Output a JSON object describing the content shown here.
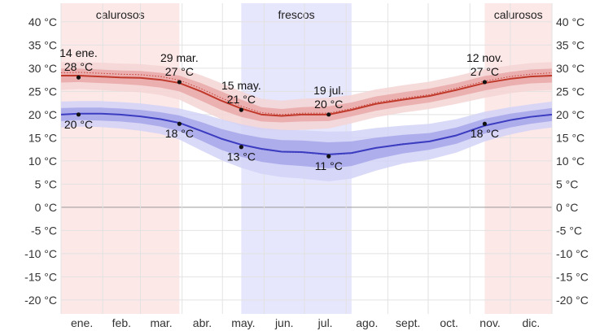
{
  "chart_data": {
    "type": "line",
    "x_categories": [
      "ene.",
      "feb.",
      "mar.",
      "abr.",
      "may.",
      "jun.",
      "jul.",
      "ago.",
      "sept.",
      "oct.",
      "nov.",
      "dic."
    ],
    "y_ticks": [
      {
        "value": 40,
        "label": "40 °C"
      },
      {
        "value": 35,
        "label": "35 °C"
      },
      {
        "value": 30,
        "label": "30 °C"
      },
      {
        "value": 25,
        "label": "25 °C"
      },
      {
        "value": 20,
        "label": "20 °C"
      },
      {
        "value": 15,
        "label": "15 °C"
      },
      {
        "value": 10,
        "label": "10 °C"
      },
      {
        "value": 5,
        "label": "5 °C"
      },
      {
        "value": 0,
        "label": "0 °C"
      },
      {
        "value": -5,
        "label": "-5 °C"
      },
      {
        "value": -10,
        "label": "-10 °C"
      },
      {
        "value": -15,
        "label": "-15 °C"
      },
      {
        "value": -20,
        "label": "-20 °C"
      }
    ],
    "ylim": [
      -23,
      44
    ],
    "xlim_days": [
      1,
      366
    ],
    "seasons": [
      {
        "name": "calurosos",
        "label": "calurosos",
        "start_day": 1,
        "end_day": 89,
        "color": "#fde8e8"
      },
      {
        "name": "frescos",
        "label": "frescos",
        "start_day": 135,
        "end_day": 217,
        "color": "#e6e6fc"
      },
      {
        "name": "calurosos",
        "label": "calurosos",
        "start_day": 316,
        "end_day": 366,
        "color": "#fde8e8"
      }
    ],
    "series": [
      {
        "name": "high",
        "color": "#c0392b",
        "band_inner_color": "#e9a8a8",
        "band_outer_color": "#f5d5d5",
        "days": [
          1,
          14,
          30,
          45,
          60,
          75,
          89,
          105,
          120,
          135,
          150,
          165,
          180,
          200,
          217,
          235,
          255,
          275,
          295,
          316,
          335,
          350,
          366
        ],
        "values": [
          28.4,
          28.4,
          28.2,
          28.0,
          27.9,
          27.5,
          26.8,
          25.0,
          23.0,
          21.3,
          20.0,
          19.7,
          20.0,
          20.0,
          21.0,
          22.3,
          23.2,
          24.0,
          25.3,
          26.8,
          27.7,
          28.2,
          28.4
        ],
        "p25_75_low": [
          26.9,
          27.0,
          26.8,
          26.6,
          26.3,
          25.8,
          25.0,
          23.0,
          21.0,
          19.5,
          18.5,
          18.3,
          18.5,
          18.6,
          19.6,
          20.8,
          21.8,
          22.6,
          23.8,
          25.2,
          26.2,
          26.7,
          26.9
        ],
        "p25_75_high": [
          29.9,
          29.9,
          29.7,
          29.5,
          29.4,
          29.0,
          28.4,
          26.8,
          25.0,
          23.2,
          21.6,
          21.2,
          21.6,
          21.8,
          22.6,
          23.9,
          24.8,
          25.6,
          26.8,
          28.3,
          29.2,
          29.7,
          29.9
        ],
        "p10_90_low": [
          25.3,
          25.5,
          25.3,
          25.0,
          24.8,
          24.2,
          23.2,
          21.0,
          19.0,
          17.5,
          16.6,
          16.5,
          16.7,
          17.0,
          18.1,
          19.4,
          20.4,
          21.2,
          22.3,
          23.6,
          24.6,
          25.1,
          25.3
        ],
        "p10_90_high": [
          31.3,
          31.3,
          31.2,
          31.0,
          30.9,
          30.5,
          30.0,
          28.5,
          26.8,
          25.0,
          23.4,
          23.0,
          23.4,
          23.6,
          24.2,
          25.4,
          26.3,
          27.1,
          28.3,
          29.8,
          30.6,
          31.1,
          31.3
        ],
        "dotted": [
          29.0,
          29.1,
          28.9,
          28.7,
          28.6,
          28.2,
          27.4,
          25.6,
          23.6,
          21.8,
          20.4,
          20.0,
          20.3,
          20.3,
          21.3,
          22.6,
          23.5,
          24.3,
          25.7,
          27.2,
          28.2,
          28.7,
          29.0
        ]
      },
      {
        "name": "low",
        "color": "#3c3cc0",
        "band_inner_color": "#a6a6ea",
        "band_outer_color": "#d2d2f7",
        "days": [
          1,
          14,
          30,
          45,
          60,
          75,
          89,
          105,
          120,
          135,
          150,
          165,
          180,
          200,
          217,
          235,
          255,
          275,
          295,
          316,
          335,
          350,
          366
        ],
        "values": [
          20.0,
          20.2,
          20.2,
          20.0,
          19.6,
          19.0,
          18.2,
          16.5,
          14.8,
          13.5,
          12.6,
          12.0,
          11.9,
          11.4,
          11.7,
          12.8,
          13.6,
          14.2,
          15.5,
          17.6,
          18.8,
          19.5,
          20.0
        ],
        "p25_75_low": [
          18.6,
          18.8,
          18.7,
          18.5,
          18.1,
          17.4,
          16.4,
          14.4,
          12.4,
          10.9,
          9.8,
          9.2,
          8.9,
          8.4,
          8.9,
          10.4,
          11.6,
          12.4,
          13.7,
          15.9,
          17.2,
          18.0,
          18.6
        ],
        "p25_75_high": [
          21.4,
          21.5,
          21.5,
          21.3,
          21.0,
          20.5,
          19.8,
          18.4,
          16.9,
          15.8,
          15.0,
          14.5,
          14.4,
          14.0,
          14.2,
          15.0,
          15.6,
          16.0,
          17.2,
          19.1,
          20.2,
          20.8,
          21.4
        ],
        "p10_90_low": [
          17.2,
          17.4,
          17.3,
          17.0,
          16.5,
          15.8,
          14.6,
          12.3,
          10.2,
          8.5,
          7.2,
          6.5,
          6.2,
          5.6,
          6.2,
          7.9,
          9.4,
          10.3,
          11.8,
          14.2,
          15.7,
          16.6,
          17.2
        ],
        "p10_90_high": [
          22.8,
          22.9,
          22.9,
          22.7,
          22.4,
          21.9,
          21.3,
          20.2,
          19.0,
          17.9,
          17.1,
          16.7,
          16.6,
          16.3,
          16.4,
          17.1,
          17.6,
          18.0,
          19.0,
          20.6,
          21.6,
          22.2,
          22.8
        ],
        "dotted": [
          20.0,
          20.2,
          20.2,
          20.0,
          19.6,
          19.0,
          18.2,
          16.5,
          14.8,
          13.5,
          12.5,
          11.9,
          11.8,
          11.3,
          11.6,
          12.8,
          13.7,
          14.2,
          15.6,
          17.7,
          18.8,
          19.5,
          20.0
        ]
      }
    ],
    "annotations": [
      {
        "series": "high",
        "day": 14,
        "value": 28,
        "date": "14 ene.",
        "label": "28 °C",
        "position": "above"
      },
      {
        "series": "high",
        "day": 89,
        "value": 27,
        "date": "29 mar.",
        "label": "27 °C",
        "position": "above"
      },
      {
        "series": "high",
        "day": 135,
        "value": 21,
        "date": "15 may.",
        "label": "21 °C",
        "position": "above"
      },
      {
        "series": "high",
        "day": 200,
        "value": 20,
        "date": "19 jul.",
        "label": "20 °C",
        "position": "above"
      },
      {
        "series": "high",
        "day": 316,
        "value": 27,
        "date": "12 nov.",
        "label": "27 °C",
        "position": "above"
      },
      {
        "series": "low",
        "day": 14,
        "value": 20,
        "date": "",
        "label": "20 °C",
        "position": "below"
      },
      {
        "series": "low",
        "day": 89,
        "value": 18,
        "date": "",
        "label": "18 °C",
        "position": "below"
      },
      {
        "series": "low",
        "day": 135,
        "value": 13,
        "date": "",
        "label": "13 °C",
        "position": "below"
      },
      {
        "series": "low",
        "day": 200,
        "value": 11,
        "date": "",
        "label": "11 °C",
        "position": "below"
      },
      {
        "series": "low",
        "day": 316,
        "value": 18,
        "date": "",
        "label": "18 °C",
        "position": "below"
      }
    ]
  }
}
